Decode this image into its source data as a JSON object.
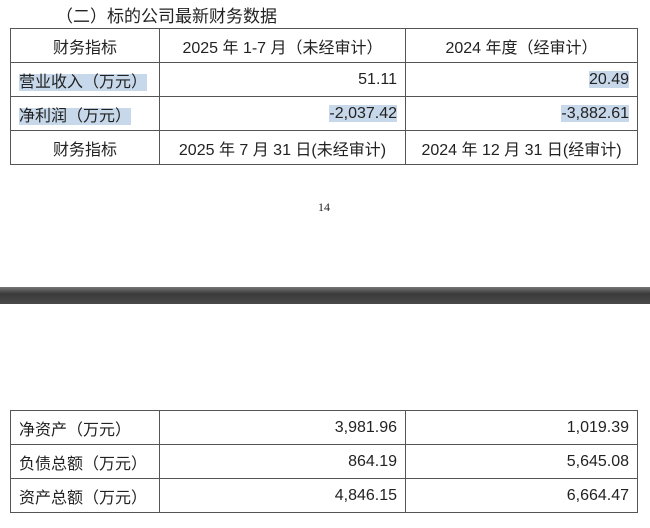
{
  "heading": "（二）标的公司最新财务数据",
  "table1": {
    "header": [
      "财务指标",
      "2025 年 1-7 月（未经审计）",
      "2024 年度（经审计）"
    ],
    "rows": [
      [
        "营业收入（万元）",
        "51.11",
        "20.49"
      ],
      [
        "净利润（万元）",
        "-2,037.42",
        "-3,882.61"
      ]
    ],
    "header2": [
      "财务指标",
      "2025 年 7 月 31 日(未经审计)",
      "2024 年 12 月 31 日(经审计)"
    ]
  },
  "page_number": "14",
  "table2": {
    "rows": [
      [
        "净资产（万元）",
        "3,981.96",
        "1,019.39"
      ],
      [
        "负债总额（万元）",
        "864.19",
        "5,645.08"
      ],
      [
        "资产总额（万元）",
        "4,846.15",
        "6,664.47"
      ]
    ]
  },
  "highlight_color": "#c7d8ea"
}
